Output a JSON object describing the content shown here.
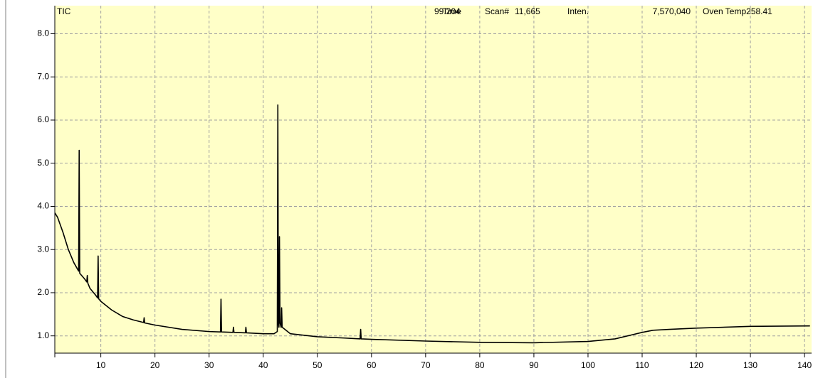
{
  "chart_data": {
    "type": "line",
    "annotations": [
      "TIC",
      "Time",
      "99.204",
      "Scan#",
      "11,665",
      "Inten.",
      "7,570,040",
      "Oven Temp258.41"
    ],
    "x": [
      1.5,
      2,
      3,
      4,
      5,
      5.9,
      6.0,
      6.1,
      7,
      7.4,
      7.5,
      7.6,
      8,
      9,
      9.4,
      9.5,
      9.6,
      10,
      12,
      14,
      16,
      17.9,
      18,
      18.1,
      20,
      25,
      30,
      32.1,
      32.2,
      32.3,
      34.4,
      34.5,
      34.6,
      36.7,
      36.8,
      36.9,
      40,
      42,
      42.6,
      42.7,
      42.8,
      42.9,
      43.0,
      43.1,
      43.3,
      43.4,
      43.5,
      45,
      50,
      55,
      57.9,
      58,
      58.1,
      60,
      70,
      80,
      90,
      100,
      105,
      110,
      112,
      115,
      120,
      130,
      141
    ],
    "values": [
      3.85,
      3.75,
      3.4,
      3.0,
      2.7,
      2.5,
      5.3,
      2.45,
      2.32,
      2.25,
      2.4,
      2.22,
      2.1,
      1.95,
      1.88,
      2.85,
      1.86,
      1.8,
      1.6,
      1.45,
      1.37,
      1.31,
      1.42,
      1.3,
      1.25,
      1.15,
      1.1,
      1.09,
      1.85,
      1.09,
      1.08,
      1.2,
      1.08,
      1.07,
      1.2,
      1.07,
      1.05,
      1.05,
      1.1,
      6.35,
      1.3,
      1.2,
      3.3,
      1.3,
      1.2,
      1.65,
      1.2,
      1.05,
      0.98,
      0.95,
      0.93,
      1.15,
      0.93,
      0.92,
      0.88,
      0.85,
      0.84,
      0.87,
      0.93,
      1.08,
      1.13,
      1.15,
      1.18,
      1.22,
      1.23
    ],
    "color": "#000000",
    "xlim": [
      1.5,
      141.3
    ],
    "ylim": [
      0.6,
      8.65
    ],
    "xticks": [
      10,
      20,
      30,
      40,
      50,
      60,
      70,
      80,
      90,
      100,
      110,
      120,
      130,
      140
    ],
    "yticks": [
      {
        "value": 1,
        "label": "1.0"
      },
      {
        "value": 2,
        "label": "2.0"
      },
      {
        "value": 3,
        "label": "3.0"
      },
      {
        "value": 4,
        "label": "4.0"
      },
      {
        "value": 5,
        "label": "5.0"
      },
      {
        "value": 6,
        "label": "6.0"
      },
      {
        "value": 7,
        "label": "7.0"
      },
      {
        "value": 8,
        "label": "8.0"
      }
    ],
    "grid": true,
    "background": "#ffffc8"
  }
}
